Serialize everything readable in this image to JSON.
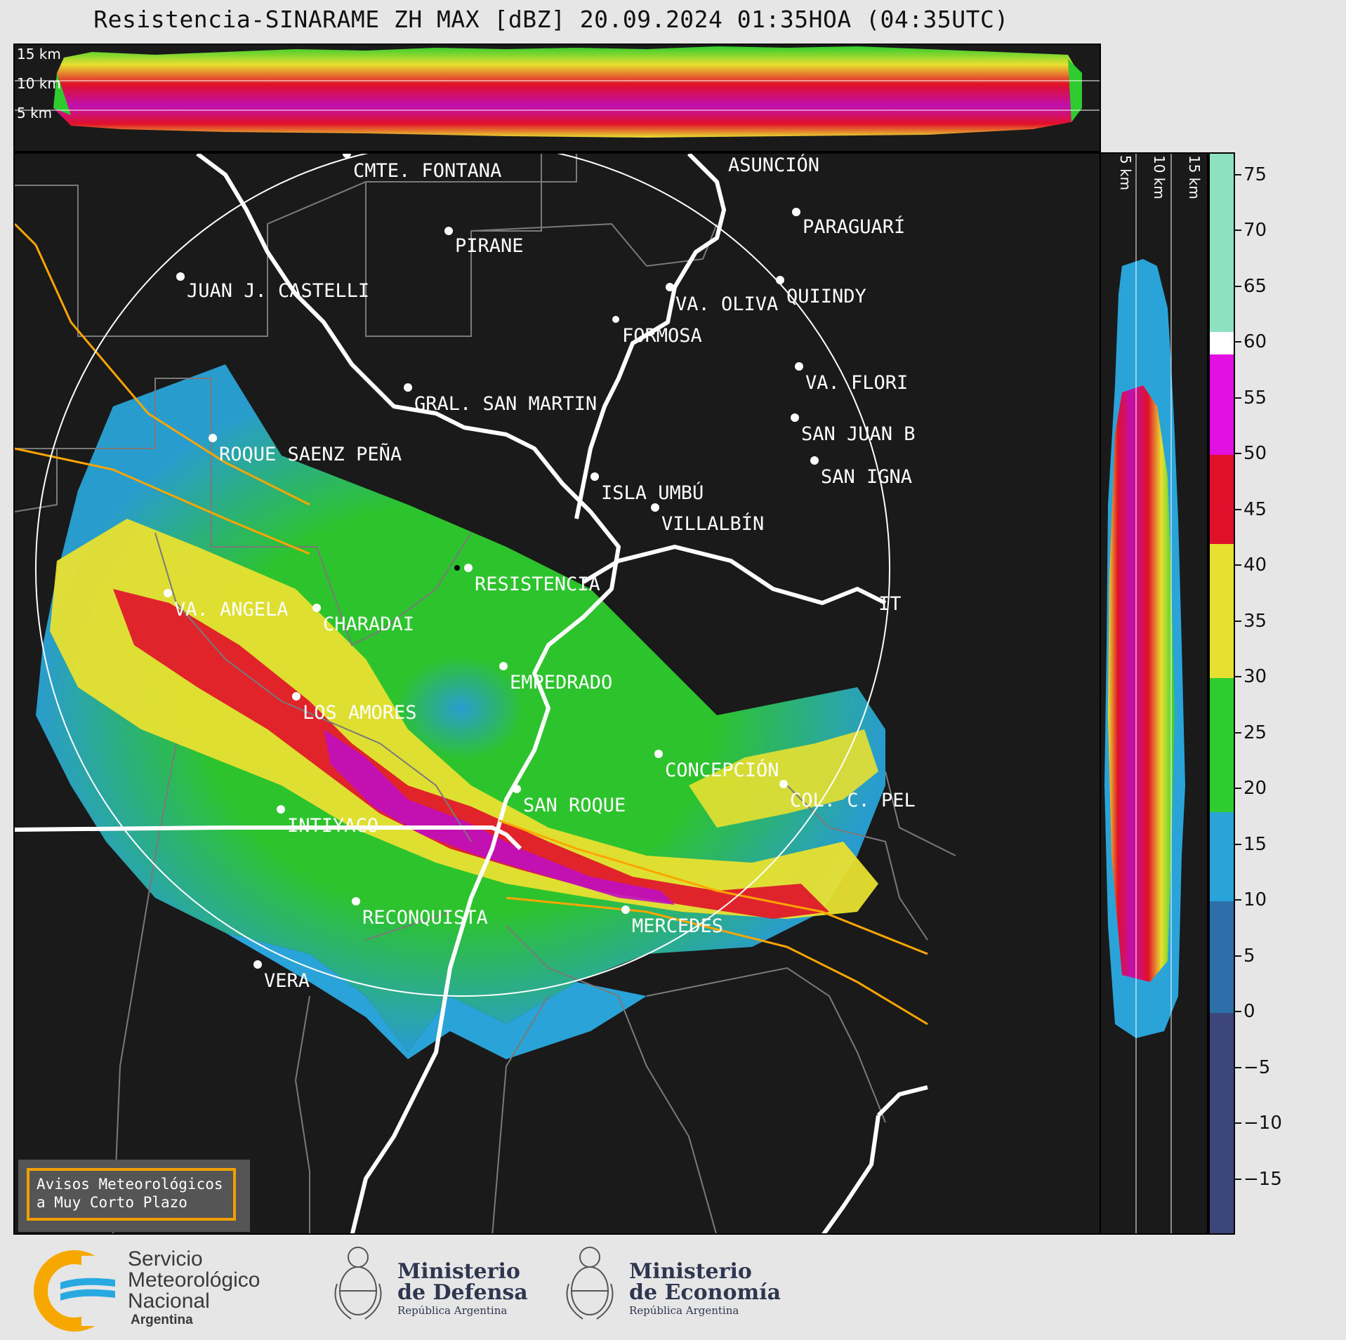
{
  "title": "Resistencia-SINARAME ZH MAX [dBZ] 20.09.2024 01:35HOA (04:35UTC)",
  "top_cross_section": {
    "height_labels": [
      "15 km",
      "10 km",
      "5 km"
    ]
  },
  "right_cross_section": {
    "height_labels": [
      "5 km",
      "10 km",
      "15 km"
    ]
  },
  "colorbar": {
    "unit": "dBZ",
    "ticks": [
      "75",
      "70",
      "65",
      "60",
      "55",
      "50",
      "45",
      "40",
      "35",
      "30",
      "25",
      "20",
      "15",
      "10",
      "5",
      "0",
      "−5",
      "−10",
      "−15"
    ],
    "range": [
      -20,
      77
    ],
    "stops": [
      {
        "from": -20,
        "to": 0,
        "color": "#3c4678"
      },
      {
        "from": 0,
        "to": 10,
        "color": "#2d6fa8"
      },
      {
        "from": 10,
        "to": 18,
        "color": "#2aa3d8"
      },
      {
        "from": 18,
        "to": 30,
        "color": "#2ecc2e"
      },
      {
        "from": 30,
        "to": 42,
        "color": "#e8e030"
      },
      {
        "from": 42,
        "to": 50,
        "color": "#e0102a"
      },
      {
        "from": 50,
        "to": 59,
        "color": "#e010e0"
      },
      {
        "from": 59,
        "to": 61,
        "color": "#ffffff"
      },
      {
        "from": 61,
        "to": 77,
        "color": "#8de0c0"
      }
    ]
  },
  "map": {
    "cities": [
      {
        "name": "CMTE. FONTANA"
      },
      {
        "name": "ASUNCIÓN"
      },
      {
        "name": "PIRANE"
      },
      {
        "name": "PARAGUARÍ"
      },
      {
        "name": "JUAN J. CASTELLI"
      },
      {
        "name": "VA. OLIVA"
      },
      {
        "name": "QUIINDY"
      },
      {
        "name": "FORMOSA"
      },
      {
        "name": "VA. FLORI"
      },
      {
        "name": "GRAL. SAN MARTIN"
      },
      {
        "name": "SAN JUAN B"
      },
      {
        "name": "ROQUE SAENZ PEÑA"
      },
      {
        "name": "SAN IGNA"
      },
      {
        "name": "ISLA UMBÚ"
      },
      {
        "name": "VILLALBÍN"
      },
      {
        "name": "RESISTENCIA"
      },
      {
        "name": "VA. ANGELA"
      },
      {
        "name": "CHARADAI"
      },
      {
        "name": "IT"
      },
      {
        "name": "EMPEDRADO"
      },
      {
        "name": "LOS AMORES"
      },
      {
        "name": "CONCEPCIÓN"
      },
      {
        "name": "SAN ROQUE"
      },
      {
        "name": "COL. C. PEL"
      },
      {
        "name": "INTIYACO"
      },
      {
        "name": "RECONQUISTA"
      },
      {
        "name": "MERCEDES"
      },
      {
        "name": "VERA"
      }
    ]
  },
  "aviso": {
    "line1": "Avisos Meteorológicos",
    "line2": "a Muy Corto Plazo"
  },
  "footer": {
    "smn": {
      "line1": "Servicio",
      "line2": "Meteorológico",
      "line3": "Nacional",
      "line4": "Argentina"
    },
    "defensa": {
      "line1": "Ministerio",
      "line2": "de Defensa",
      "line3": "República Argentina"
    },
    "economia": {
      "line1": "Ministerio",
      "line2": "de Economía",
      "line3": "República Argentina"
    }
  }
}
